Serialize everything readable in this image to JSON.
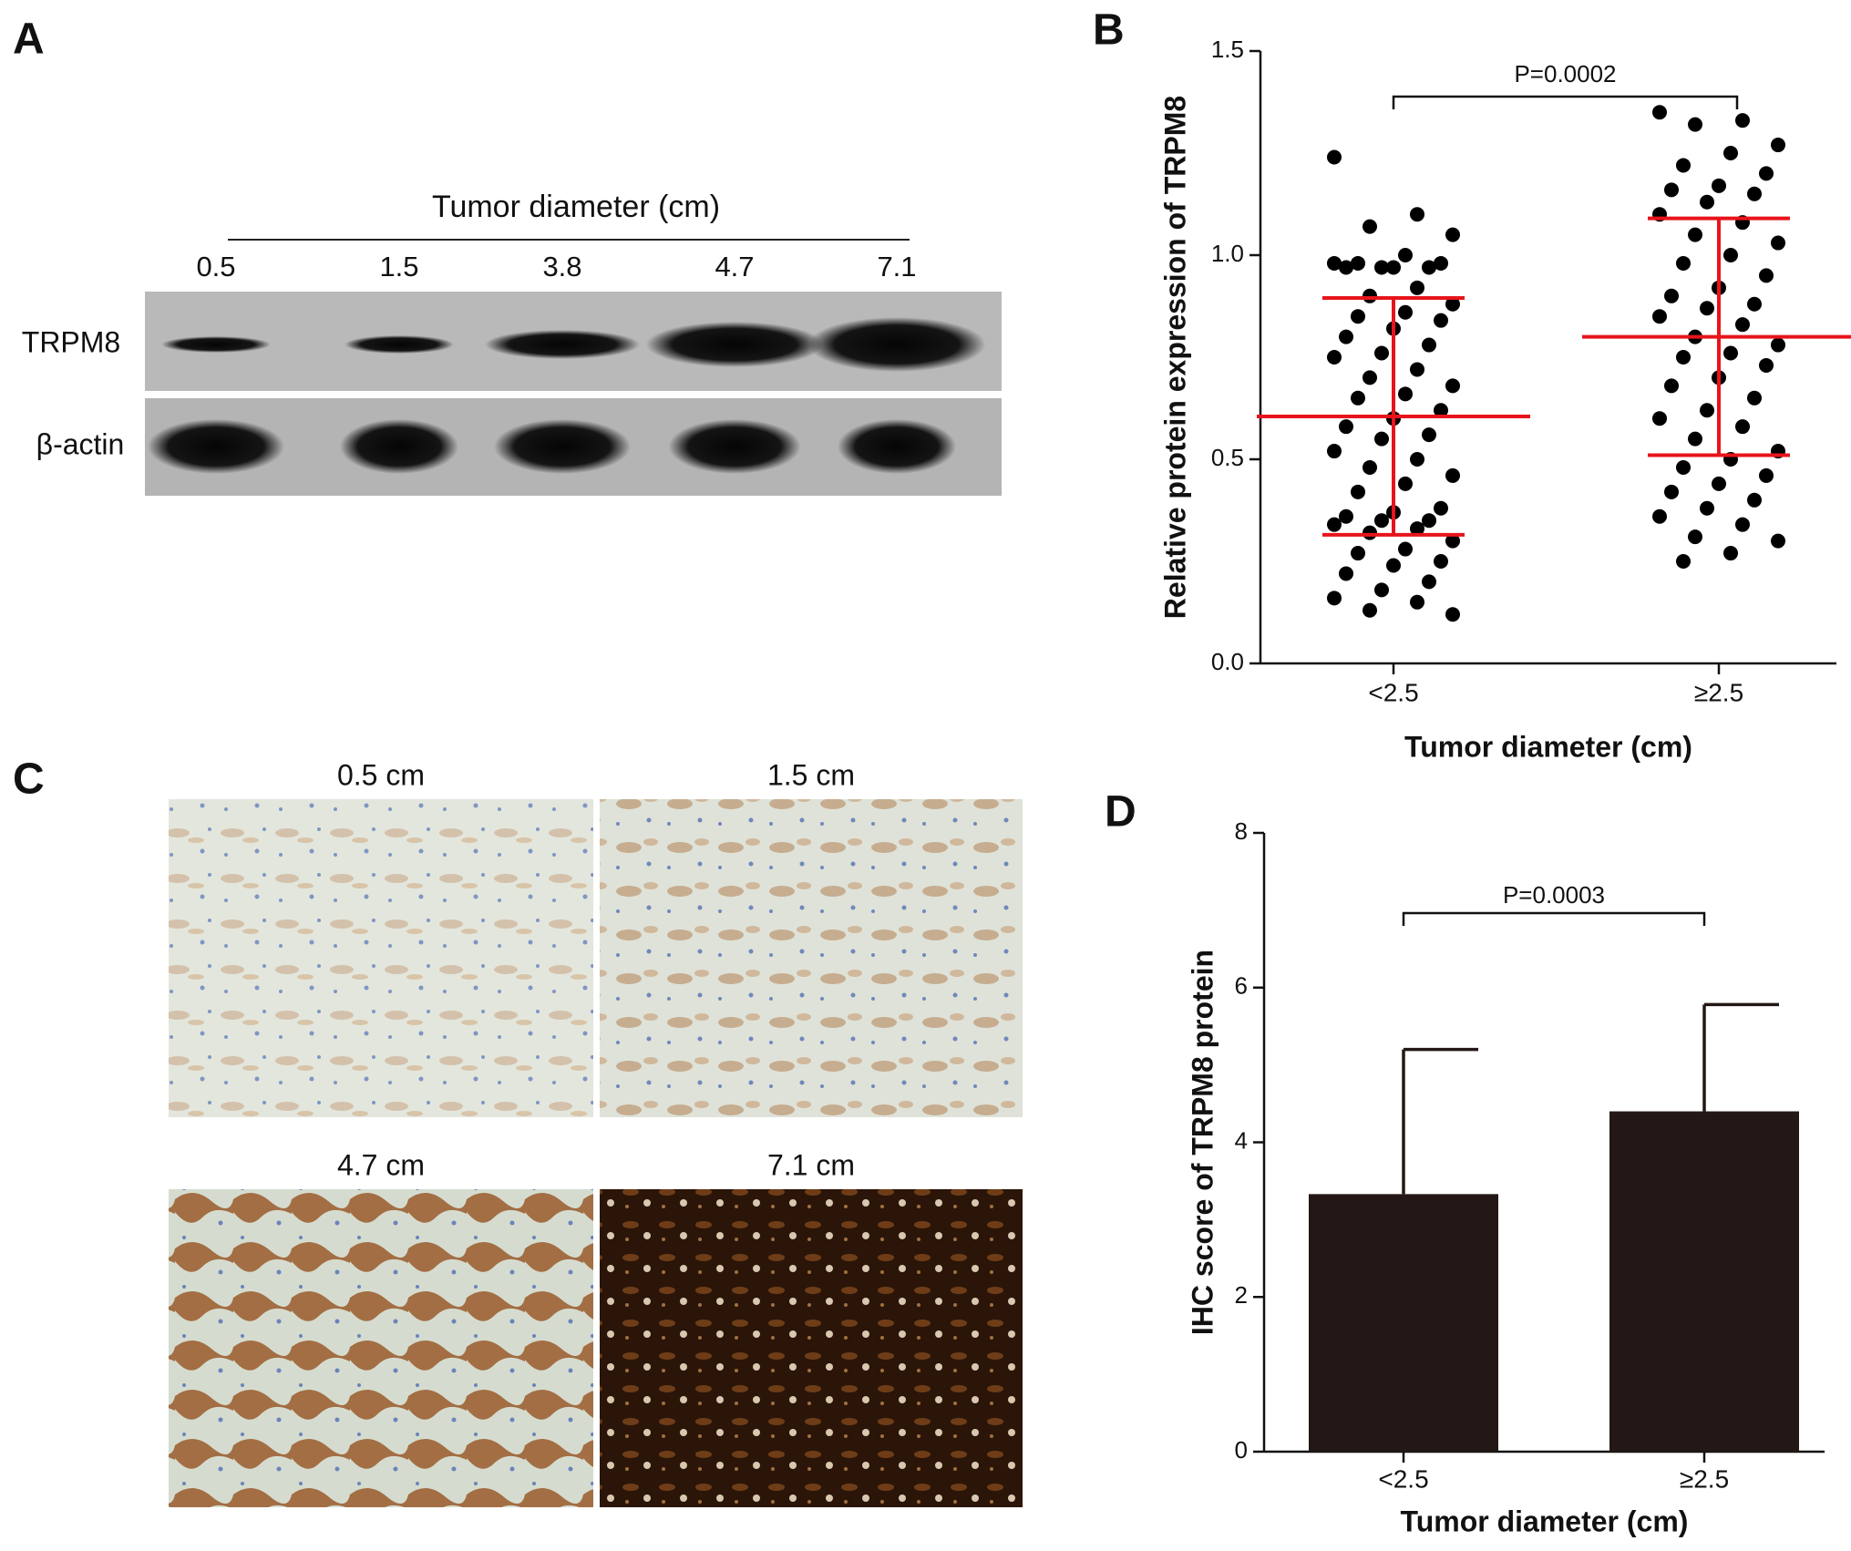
{
  "panel_a": {
    "label": "A",
    "header": "Tumor diameter (cm)",
    "lanes": [
      "0.5",
      "1.5",
      "3.8",
      "4.7",
      "7.1"
    ],
    "rows": [
      "TRPM8",
      "β-actin"
    ]
  },
  "panel_c": {
    "label": "C",
    "images": [
      "0.5 cm",
      "1.5 cm",
      "4.7 cm",
      "7.1 cm"
    ]
  },
  "chart_data": [
    {
      "type": "scatter",
      "panel_label": "B",
      "ylabel": "Relative protein expression of TRPM8",
      "xlabel": "Tumor diameter (cm)",
      "categories": [
        "<2.5",
        "≥2.5"
      ],
      "annotation": "P=0.0002",
      "color": "#000000",
      "summary_color": "#e8141b",
      "ylim": [
        0,
        1.5
      ],
      "yticks": [
        {
          "value": 0,
          "label": "0.0"
        },
        {
          "value": 0.5,
          "label": "0.5"
        },
        {
          "value": 1,
          "label": "1.0"
        },
        {
          "value": 1.5,
          "label": "1.5"
        }
      ],
      "series": [
        {
          "values": [
            1.24,
            1.1,
            1.07,
            1.05,
            1.0,
            0.98,
            0.98,
            0.97,
            0.97,
            0.97,
            0.97,
            0.98,
            0.92,
            0.9,
            0.88,
            0.86,
            0.85,
            0.84,
            0.82,
            0.8,
            0.78,
            0.76,
            0.75,
            0.72,
            0.7,
            0.68,
            0.66,
            0.65,
            0.62,
            0.6,
            0.58,
            0.56,
            0.55,
            0.52,
            0.5,
            0.48,
            0.46,
            0.44,
            0.42,
            0.38,
            0.37,
            0.36,
            0.35,
            0.35,
            0.34,
            0.33,
            0.32,
            0.3,
            0.28,
            0.27,
            0.25,
            0.24,
            0.22,
            0.2,
            0.18,
            0.16,
            0.15,
            0.13,
            0.12
          ],
          "mean": 0.605,
          "sd": 0.29
        },
        {
          "values": [
            1.35,
            1.33,
            1.32,
            1.27,
            1.25,
            1.22,
            1.2,
            1.17,
            1.16,
            1.15,
            1.13,
            1.1,
            1.08,
            1.05,
            1.03,
            1.0,
            0.98,
            0.95,
            0.92,
            0.9,
            0.88,
            0.87,
            0.85,
            0.83,
            0.8,
            0.78,
            0.76,
            0.75,
            0.73,
            0.7,
            0.68,
            0.65,
            0.62,
            0.6,
            0.58,
            0.55,
            0.52,
            0.5,
            0.48,
            0.46,
            0.44,
            0.42,
            0.4,
            0.38,
            0.36,
            0.34,
            0.31,
            0.3,
            0.27,
            0.25
          ],
          "mean": 0.8,
          "sd": 0.29
        }
      ]
    },
    {
      "type": "bar",
      "panel_label": "D",
      "ylabel": "IHC score of TRPM8 protein",
      "xlabel": "Tumor diameter (cm)",
      "categories": [
        "<2.5",
        "≥2.5"
      ],
      "annotation": "P=0.0003",
      "color": "#231815",
      "values": [
        3.33,
        4.4
      ],
      "errors": [
        1.87,
        1.38
      ],
      "ylim": [
        0,
        8
      ],
      "yticks": [
        0,
        2,
        4,
        6,
        8
      ]
    }
  ]
}
